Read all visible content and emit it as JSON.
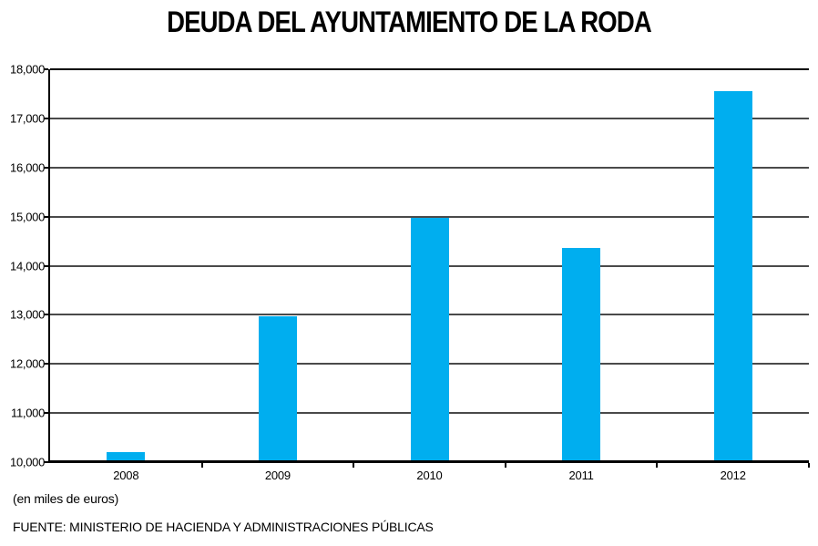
{
  "page": {
    "background_color": "#ffffff",
    "text_color": "#000000"
  },
  "chart_data": {
    "type": "bar",
    "title": "DEUDA DEL AYUNTAMIENTO DE LA RODA",
    "categories": [
      "2008",
      "2009",
      "2010",
      "2011",
      "2012"
    ],
    "values": [
      10170,
      12940,
      14930,
      14330,
      17510
    ],
    "unit_note": "(en miles de euros)",
    "source": "FUENTE: MINISTERIO DE HACIENDA Y ADMINISTRACIONES PÚBLICAS",
    "xlabel": "",
    "ylabel": "",
    "ylim": [
      10000,
      18000
    ],
    "ytick_interval": 1000,
    "ytick_labels": [
      "10,000",
      "11,000",
      "12,000",
      "13,000",
      "14,000",
      "15,000",
      "16,000",
      "17,000",
      "18,000"
    ],
    "grid": true,
    "legend": "none",
    "bar_color": "#00AEEF",
    "gridline_color": "#4a4a4a",
    "axis_color": "#000000"
  }
}
